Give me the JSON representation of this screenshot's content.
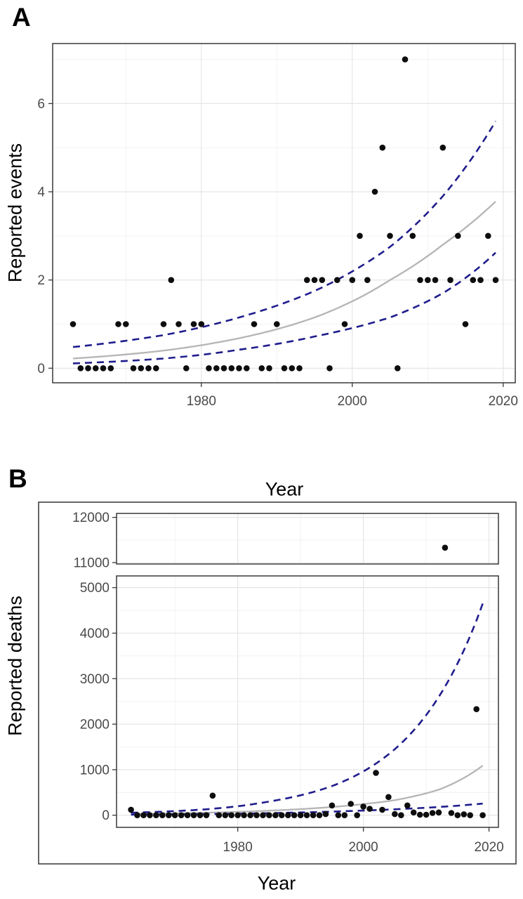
{
  "colors": {
    "point": "#0d0d0d",
    "fit_line": "#b5b5b5",
    "ci_line": "#201d8c",
    "grid_major": "#e3e3e3",
    "grid_minor": "#efefef",
    "panel_border": "#383838",
    "outer_frame": "#404040",
    "tick_text": "#4a4a4a",
    "axis_title_text": "#000000",
    "background": "#ffffff"
  },
  "chart_data": [
    {
      "id": "panel-a",
      "type": "scatter",
      "panel_label": "A",
      "xlabel": "Year",
      "ylabel": "Reported events",
      "xlim": [
        1960.3,
        2021.6
      ],
      "x_tick_values": [
        1980,
        2000,
        2020
      ],
      "x_tick_labels": [
        "1980",
        "2000",
        "2020"
      ],
      "x_minor_gridlines": [
        1970,
        1990,
        2010
      ],
      "grid": true,
      "legend": false,
      "subpanels": [
        {
          "id": "events-panel",
          "ylim": [
            -0.33,
            7.36
          ],
          "y_tick_values": [
            0,
            2,
            4,
            6
          ],
          "y_tick_labels": [
            "0",
            "2",
            "4",
            "6"
          ],
          "y_minor_gridlines": [
            1,
            3,
            5,
            7
          ],
          "points": [
            [
              1963,
              1
            ],
            [
              1964,
              0
            ],
            [
              1965,
              0
            ],
            [
              1966,
              0
            ],
            [
              1967,
              0
            ],
            [
              1968,
              0
            ],
            [
              1969,
              1
            ],
            [
              1970,
              1
            ],
            [
              1971,
              0
            ],
            [
              1972,
              0
            ],
            [
              1973,
              0
            ],
            [
              1974,
              0
            ],
            [
              1975,
              1
            ],
            [
              1976,
              2
            ],
            [
              1977,
              1
            ],
            [
              1978,
              0
            ],
            [
              1979,
              1
            ],
            [
              1980,
              1
            ],
            [
              1981,
              0
            ],
            [
              1982,
              0
            ],
            [
              1983,
              0
            ],
            [
              1984,
              0
            ],
            [
              1985,
              0
            ],
            [
              1986,
              0
            ],
            [
              1987,
              1
            ],
            [
              1988,
              0
            ],
            [
              1989,
              0
            ],
            [
              1990,
              1
            ],
            [
              1991,
              0
            ],
            [
              1992,
              0
            ],
            [
              1993,
              0
            ],
            [
              1994,
              2
            ],
            [
              1995,
              2
            ],
            [
              1996,
              2
            ],
            [
              1997,
              0
            ],
            [
              1998,
              2
            ],
            [
              1999,
              1
            ],
            [
              2000,
              2
            ],
            [
              2001,
              3
            ],
            [
              2002,
              2
            ],
            [
              2003,
              4
            ],
            [
              2004,
              5
            ],
            [
              2005,
              3
            ],
            [
              2006,
              0
            ],
            [
              2007,
              7
            ],
            [
              2008,
              3
            ],
            [
              2009,
              2
            ],
            [
              2010,
              2
            ],
            [
              2011,
              2
            ],
            [
              2012,
              5
            ],
            [
              2013,
              2
            ],
            [
              2014,
              3
            ],
            [
              2015,
              1
            ],
            [
              2016,
              2
            ],
            [
              2017,
              2
            ],
            [
              2018,
              3
            ],
            [
              2019,
              2
            ]
          ],
          "series": [
            {
              "name": "poisson-fit",
              "style": "solid",
              "control_points": [
                [
                  1963,
                  0.22
                ],
                [
                  1975,
                  0.4
                ],
                [
                  1985,
                  0.68
                ],
                [
                  1995,
                  1.15
                ],
                [
                  2005,
                  2.0
                ],
                [
                  2012,
                  2.8
                ],
                [
                  2019,
                  3.78
                ]
              ]
            },
            {
              "name": "ci-upper",
              "style": "dashed",
              "control_points": [
                [
                  1963,
                  0.48
                ],
                [
                  1975,
                  0.75
                ],
                [
                  1985,
                  1.15
                ],
                [
                  1995,
                  1.75
                ],
                [
                  2005,
                  2.75
                ],
                [
                  2012,
                  3.9
                ],
                [
                  2019,
                  5.6
                ]
              ]
            },
            {
              "name": "ci-lower",
              "style": "dashed",
              "control_points": [
                [
                  1963,
                  0.11
                ],
                [
                  1975,
                  0.22
                ],
                [
                  1985,
                  0.42
                ],
                [
                  1995,
                  0.72
                ],
                [
                  2005,
                  1.15
                ],
                [
                  2012,
                  1.7
                ],
                [
                  2019,
                  2.62
                ]
              ]
            }
          ]
        }
      ]
    },
    {
      "id": "panel-b",
      "type": "scatter",
      "panel_label": "B",
      "xlabel": "Year",
      "ylabel": "Reported deaths",
      "xlim": [
        1960.7,
        2021.5
      ],
      "x_tick_values": [
        1980,
        2000,
        2020
      ],
      "x_tick_labels": [
        "1980",
        "2000",
        "2020"
      ],
      "x_minor_gridlines": [
        1970,
        1990,
        2010
      ],
      "grid": true,
      "legend": false,
      "broken_y_axis": true,
      "subpanels": [
        {
          "id": "outlier-panel",
          "ylim": [
            10969,
            12088
          ],
          "y_tick_values": [
            11000,
            12000
          ],
          "y_tick_labels": [
            "11000",
            "12000"
          ],
          "y_minor_gridlines": [
            11500
          ],
          "points": [
            [
              2013,
              11330
            ]
          ],
          "series": []
        },
        {
          "id": "deaths-panel",
          "ylim": [
            -267,
            5257
          ],
          "y_tick_values": [
            0,
            1000,
            2000,
            3000,
            4000,
            5000
          ],
          "y_tick_labels": [
            "0",
            "1000",
            "2000",
            "3000",
            "4000",
            "5000"
          ],
          "y_minor_gridlines": [
            500,
            1500,
            2500,
            3500,
            4500
          ],
          "points": [
            [
              1963,
              120
            ],
            [
              1964,
              0
            ],
            [
              1965,
              0
            ],
            [
              1966,
              0
            ],
            [
              1967,
              0
            ],
            [
              1968,
              0
            ],
            [
              1969,
              0
            ],
            [
              1970,
              0
            ],
            [
              1971,
              0
            ],
            [
              1972,
              0
            ],
            [
              1973,
              0
            ],
            [
              1974,
              0
            ],
            [
              1975,
              0
            ],
            [
              1976,
              430
            ],
            [
              1977,
              0
            ],
            [
              1978,
              0
            ],
            [
              1979,
              0
            ],
            [
              1980,
              0
            ],
            [
              1981,
              0
            ],
            [
              1982,
              0
            ],
            [
              1983,
              0
            ],
            [
              1984,
              0
            ],
            [
              1985,
              0
            ],
            [
              1986,
              0
            ],
            [
              1987,
              0
            ],
            [
              1988,
              0
            ],
            [
              1989,
              0
            ],
            [
              1990,
              0
            ],
            [
              1991,
              0
            ],
            [
              1992,
              0
            ],
            [
              1993,
              0
            ],
            [
              1994,
              25
            ],
            [
              1995,
              215
            ],
            [
              1996,
              0
            ],
            [
              1997,
              0
            ],
            [
              1998,
              250
            ],
            [
              1999,
              0
            ],
            [
              2000,
              190
            ],
            [
              2001,
              140
            ],
            [
              2002,
              930
            ],
            [
              2003,
              120
            ],
            [
              2004,
              400
            ],
            [
              2005,
              25
            ],
            [
              2006,
              0
            ],
            [
              2007,
              215
            ],
            [
              2008,
              60
            ],
            [
              2009,
              10
            ],
            [
              2010,
              10
            ],
            [
              2011,
              50
            ],
            [
              2012,
              60
            ],
            [
              2014,
              50
            ],
            [
              2015,
              0
            ],
            [
              2016,
              20
            ],
            [
              2017,
              0
            ],
            [
              2018,
              2330
            ],
            [
              2019,
              0
            ]
          ],
          "series": [
            {
              "name": "poisson-fit",
              "style": "solid",
              "control_points": [
                [
                  1963,
                  28
                ],
                [
                  1975,
                  55
                ],
                [
                  1985,
                  100
                ],
                [
                  1995,
                  180
                ],
                [
                  2005,
                  330
                ],
                [
                  2012,
                  560
                ],
                [
                  2019,
                  1090
                ]
              ]
            },
            {
              "name": "ci-upper",
              "style": "dashed",
              "control_points": [
                [
                  1963,
                  55
                ],
                [
                  1975,
                  130
                ],
                [
                  1985,
                  300
                ],
                [
                  1995,
                  640
                ],
                [
                  2005,
                  1450
                ],
                [
                  2012,
                  2600
                ],
                [
                  2019,
                  4650
                ]
              ]
            },
            {
              "name": "ci-lower",
              "style": "dashed",
              "control_points": [
                [
                  1963,
                  13
                ],
                [
                  1975,
                  25
                ],
                [
                  1985,
                  45
                ],
                [
                  1995,
                  80
                ],
                [
                  2005,
                  130
                ],
                [
                  2012,
                  180
                ],
                [
                  2019,
                  255
                ]
              ]
            }
          ]
        }
      ]
    }
  ]
}
